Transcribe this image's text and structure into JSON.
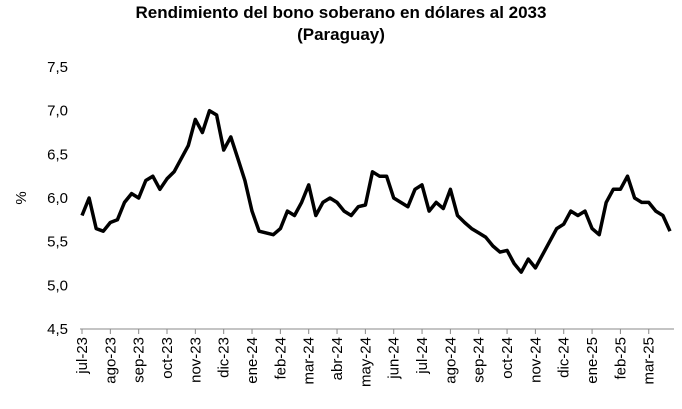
{
  "chart_data": {
    "type": "line",
    "title": "Rendimiento del bono soberano en dólares al 2033",
    "subtitle": "(Paraguay)",
    "y_label": "%",
    "categories": [
      "jul-23",
      null,
      null,
      null,
      "ago-23",
      null,
      null,
      null,
      "sep-23",
      null,
      null,
      null,
      "oct-23",
      null,
      null,
      null,
      "nov-23",
      null,
      null,
      null,
      "dic-23",
      null,
      null,
      null,
      "ene-24",
      null,
      null,
      null,
      "feb-24",
      null,
      null,
      null,
      "mar-24",
      null,
      null,
      null,
      "abr-24",
      null,
      null,
      null,
      "may-24",
      null,
      null,
      null,
      "jun-24",
      null,
      null,
      null,
      "jul-24",
      null,
      null,
      null,
      "ago-24",
      null,
      null,
      null,
      "sep-24",
      null,
      null,
      null,
      "oct-24",
      null,
      null,
      null,
      "nov-24",
      null,
      null,
      null,
      "dic-24",
      null,
      null,
      null,
      "ene-25",
      null,
      null,
      null,
      "feb-25",
      null,
      null,
      null,
      "mar-25",
      null,
      null,
      null
    ],
    "series": [
      {
        "name": "Rendimiento",
        "color": "#000000",
        "values": [
          5.8,
          6.0,
          5.65,
          5.62,
          5.72,
          5.75,
          5.95,
          6.05,
          6.0,
          6.2,
          6.25,
          6.1,
          6.22,
          6.3,
          6.45,
          6.6,
          6.9,
          6.75,
          7.0,
          6.95,
          6.55,
          6.7,
          6.45,
          6.2,
          5.85,
          5.62,
          5.6,
          5.58,
          5.65,
          5.85,
          5.8,
          5.95,
          6.15,
          5.8,
          5.95,
          6.0,
          5.95,
          5.85,
          5.8,
          5.9,
          5.92,
          6.3,
          6.25,
          6.25,
          6.0,
          5.95,
          5.9,
          6.1,
          6.15,
          5.85,
          5.95,
          5.88,
          6.1,
          5.8,
          5.72,
          5.65,
          5.6,
          5.55,
          5.45,
          5.38,
          5.4,
          5.25,
          5.15,
          5.3,
          5.2,
          5.35,
          5.5,
          5.65,
          5.7,
          5.85,
          5.8,
          5.85,
          5.65,
          5.58,
          5.95,
          6.1,
          6.1,
          6.25,
          6.0,
          5.95,
          5.95,
          5.85,
          5.8,
          5.62
        ]
      }
    ],
    "ylim": [
      4.5,
      7.5
    ],
    "yticks": [
      {
        "value": 4.5,
        "label": "4,5"
      },
      {
        "value": 5.0,
        "label": "5,0"
      },
      {
        "value": 5.5,
        "label": "5,5"
      },
      {
        "value": 6.0,
        "label": "6,0"
      },
      {
        "value": 6.5,
        "label": "6,5"
      },
      {
        "value": 7.0,
        "label": "7,0"
      },
      {
        "value": 7.5,
        "label": "7,5"
      }
    ],
    "grid": false
  }
}
